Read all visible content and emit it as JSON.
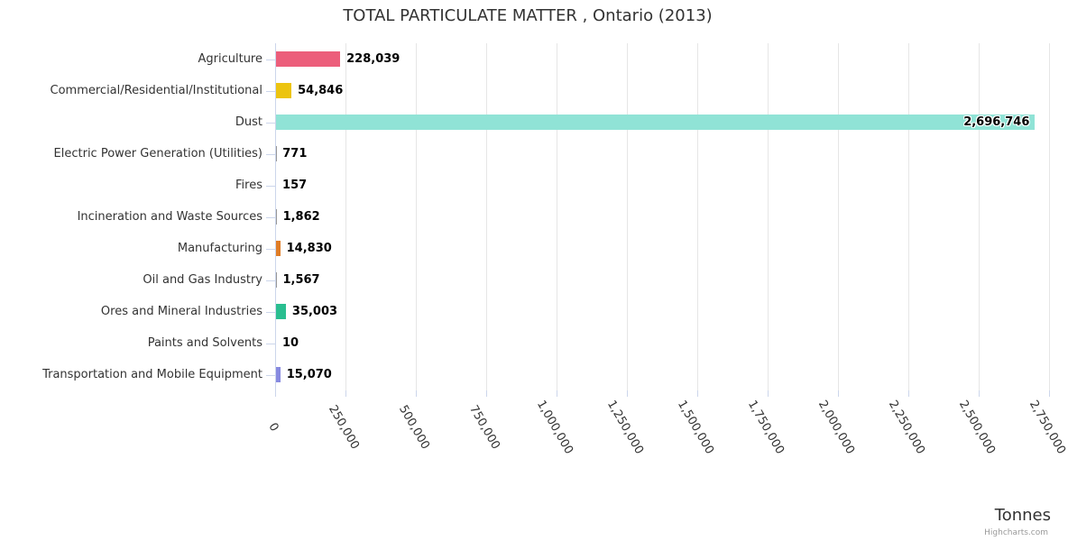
{
  "chart_data": {
    "type": "bar",
    "orientation": "horizontal",
    "title": "TOTAL PARTICULATE MATTER , Ontario (2013)",
    "xlabel": "Tonnes",
    "credit": "Highcharts.com",
    "legend": "none",
    "grid": true,
    "xlim": [
      0,
      2750000
    ],
    "categories": [
      "Agriculture",
      "Commercial/Residential/Institutional",
      "Dust",
      "Electric Power Generation (Utilities)",
      "Fires",
      "Incineration and Waste Sources",
      "Manufacturing",
      "Oil and Gas Industry",
      "Ores and Mineral Industries",
      "Paints and Solvents",
      "Transportation and Mobile Equipment"
    ],
    "values": [
      228039,
      54846,
      2696746,
      771,
      157,
      1862,
      14830,
      1567,
      35003,
      10,
      15070
    ],
    "value_labels": [
      "228,039",
      "54,846",
      "2,696,746",
      "771",
      "157",
      "1,862",
      "14,830",
      "1,567",
      "35,003",
      "10",
      "15,070"
    ],
    "bar_colors": [
      "#EC5E7B",
      "#ECC410",
      "#90E3D6",
      null,
      null,
      null,
      "#E07D26",
      null,
      "#2ABE90",
      null,
      "#878AE0"
    ],
    "x_ticks": [
      {
        "value": 0,
        "label": "0"
      },
      {
        "value": 250000,
        "label": "250,000"
      },
      {
        "value": 500000,
        "label": "500,000"
      },
      {
        "value": 750000,
        "label": "750,000"
      },
      {
        "value": 1000000,
        "label": "1,000,000"
      },
      {
        "value": 1250000,
        "label": "1,250,000"
      },
      {
        "value": 1500000,
        "label": "1,500,000"
      },
      {
        "value": 1750000,
        "label": "1,750,000"
      },
      {
        "value": 2000000,
        "label": "2,000,000"
      },
      {
        "value": 2250000,
        "label": "2,250,000"
      },
      {
        "value": 2500000,
        "label": "2,500,000"
      },
      {
        "value": 2750000,
        "label": "2,750,000"
      }
    ],
    "colors": {
      "grid": "#e6e6e6",
      "axis": "#ccd6eb",
      "text": "#333333",
      "value_label": "#000000",
      "credits": "#999999"
    }
  }
}
